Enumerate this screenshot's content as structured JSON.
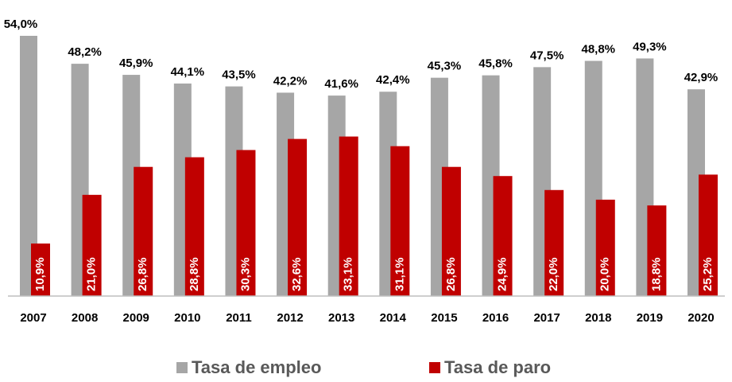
{
  "chart_data": {
    "type": "bar",
    "categories": [
      "2007",
      "2008",
      "2009",
      "2010",
      "2011",
      "2012",
      "2013",
      "2014",
      "2015",
      "2016",
      "2017",
      "2018",
      "2019",
      "2020"
    ],
    "series": [
      {
        "name": "Tasa de empleo",
        "color": "#a6a6a6",
        "values": [
          54.0,
          48.2,
          45.9,
          44.1,
          43.5,
          42.2,
          41.6,
          42.4,
          45.3,
          45.8,
          47.5,
          48.8,
          49.3,
          42.9
        ],
        "value_labels": [
          "54,0%",
          "48,2%",
          "45,9%",
          "44,1%",
          "43,5%",
          "42,2%",
          "41,6%",
          "42,4%",
          "45,3%",
          "45,8%",
          "47,5%",
          "48,8%",
          "49,3%",
          "42,9%"
        ]
      },
      {
        "name": "Tasa de paro",
        "color": "#c00000",
        "values": [
          10.9,
          21.0,
          26.8,
          28.8,
          30.3,
          32.6,
          33.1,
          31.1,
          26.8,
          24.9,
          22.0,
          20.0,
          18.8,
          25.2
        ],
        "value_labels": [
          "10,9%",
          "21,0%",
          "26,8%",
          "28,8%",
          "30,3%",
          "32,6%",
          "33,1%",
          "31,1%",
          "26,8%",
          "24,9%",
          "22,0%",
          "20,0%",
          "18,8%",
          "25,2%"
        ]
      }
    ],
    "ylim": [
      0,
      54
    ],
    "legend": "bottom"
  }
}
